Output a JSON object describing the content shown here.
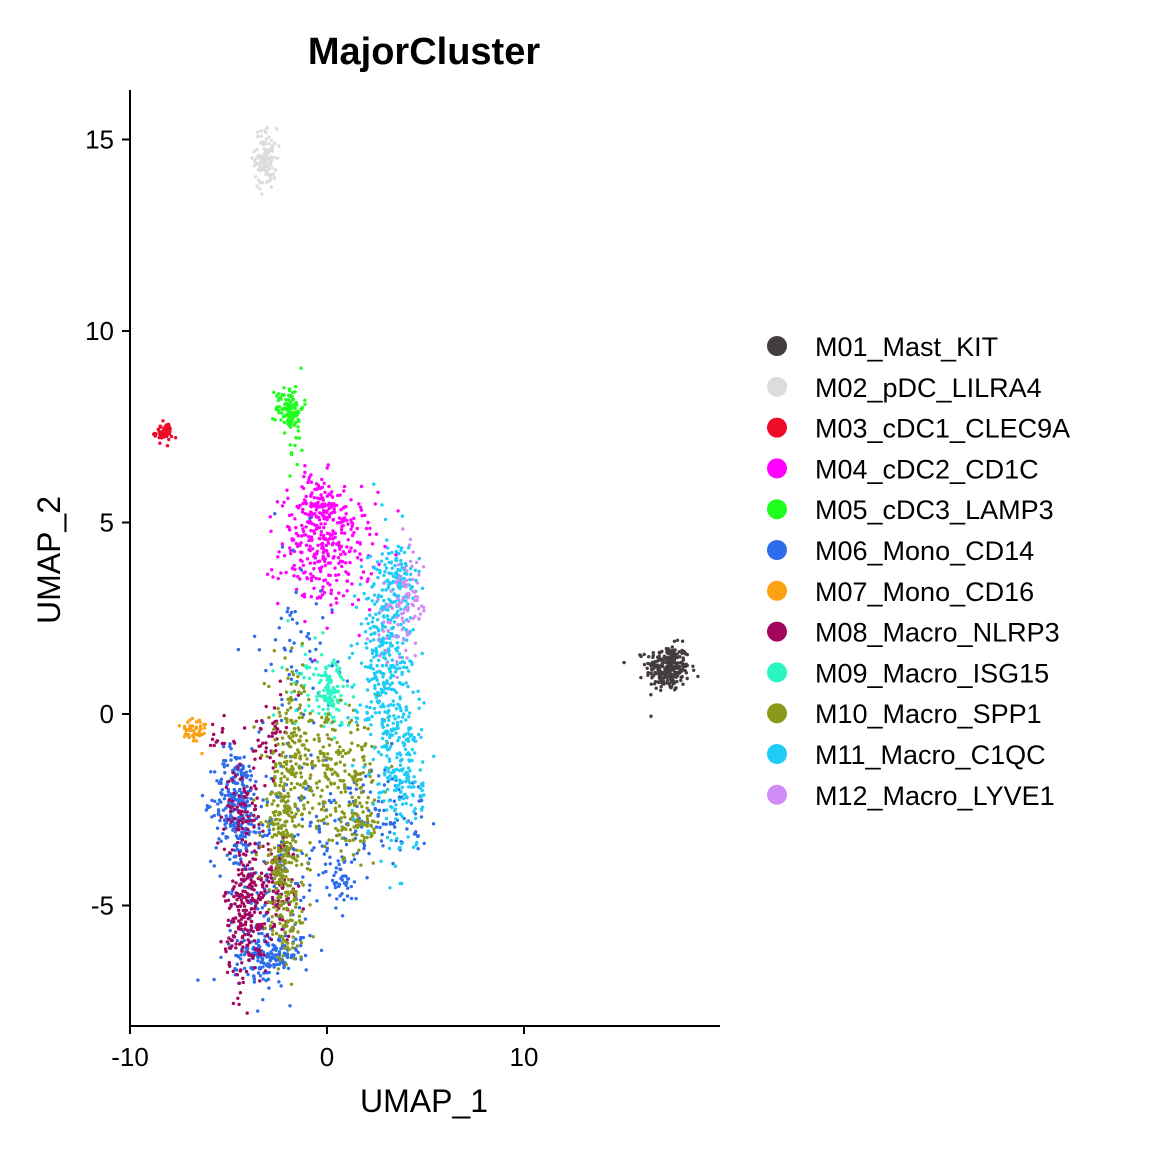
{
  "chart_data": {
    "type": "scatter",
    "title": "MajorCluster",
    "xlabel": "UMAP_1",
    "ylabel": "UMAP_2",
    "xlim": [
      -10,
      20
    ],
    "ylim": [
      -7.8,
      16.2
    ],
    "xticks": [
      -10,
      0,
      10
    ],
    "xtick_labels": [
      "-10",
      "0",
      "10"
    ],
    "yticks": [
      -5,
      0,
      5,
      10,
      15
    ],
    "ytick_labels": [
      "-5",
      "0",
      "5",
      "10",
      "15"
    ],
    "grid": false,
    "legend_position": "right",
    "series": [
      {
        "name": "M01_Mast_KIT",
        "color": "#433D3F",
        "clusters": [
          {
            "cx": 17.3,
            "cy": 1.2,
            "sx": 0.55,
            "sy": 0.3,
            "n": 260
          }
        ]
      },
      {
        "name": "M02_pDC_LILRA4",
        "color": "#DCDCDC",
        "clusters": [
          {
            "cx": -3.1,
            "cy": 14.5,
            "sx": 0.28,
            "sy": 0.4,
            "n": 110
          }
        ]
      },
      {
        "name": "M03_cDC1_CLEC9A",
        "color": "#EE0C28",
        "clusters": [
          {
            "cx": -8.3,
            "cy": 7.35,
            "sx": 0.22,
            "sy": 0.12,
            "n": 60
          }
        ]
      },
      {
        "name": "M04_cDC2_CD1C",
        "color": "#FF00FF",
        "clusters": [
          {
            "cx": 0.0,
            "cy": 4.3,
            "sx": 1.2,
            "sy": 0.75,
            "n": 300
          },
          {
            "cx": -0.5,
            "cy": 5.4,
            "sx": 0.6,
            "sy": 0.45,
            "n": 110
          }
        ]
      },
      {
        "name": "M05_cDC3_LAMP3",
        "color": "#1EFF1E",
        "clusters": [
          {
            "cx": -1.9,
            "cy": 8.0,
            "sx": 0.35,
            "sy": 0.3,
            "n": 110
          },
          {
            "cx": -1.6,
            "cy": 7.0,
            "sx": 0.15,
            "sy": 0.5,
            "n": 12
          }
        ]
      },
      {
        "name": "M06_Mono_CD14",
        "color": "#2D6CEB",
        "clusters": [
          {
            "cx": -4.6,
            "cy": -2.3,
            "sx": 0.55,
            "sy": 0.7,
            "n": 250
          },
          {
            "cx": -3.0,
            "cy": -6.3,
            "sx": 0.85,
            "sy": 0.3,
            "n": 180
          },
          {
            "cx": -3.0,
            "cy": -4.0,
            "sx": 1.2,
            "sy": 1.6,
            "n": 180
          },
          {
            "cx": 0.8,
            "cy": -4.4,
            "sx": 0.3,
            "sy": 0.25,
            "n": 30
          },
          {
            "cx": 0.2,
            "cy": -3.3,
            "sx": 1.0,
            "sy": 0.8,
            "n": 80
          },
          {
            "cx": -1.5,
            "cy": 2.0,
            "sx": 1.0,
            "sy": 1.3,
            "n": 60
          },
          {
            "cx": 3.2,
            "cy": -2.5,
            "sx": 1.0,
            "sy": 0.6,
            "n": 80
          }
        ]
      },
      {
        "name": "M07_Mono_CD16",
        "color": "#FBA112",
        "clusters": [
          {
            "cx": -6.8,
            "cy": -0.45,
            "sx": 0.35,
            "sy": 0.22,
            "n": 50
          }
        ]
      },
      {
        "name": "M08_Macro_NLRP3",
        "color": "#A3065E",
        "clusters": [
          {
            "cx": -4.1,
            "cy": -5.2,
            "sx": 0.55,
            "sy": 0.9,
            "n": 240
          },
          {
            "cx": -4.2,
            "cy": -2.5,
            "sx": 0.5,
            "sy": 0.5,
            "n": 80
          },
          {
            "cx": -2.5,
            "cy": -4.5,
            "sx": 0.5,
            "sy": 0.7,
            "n": 90
          },
          {
            "cx": -2.9,
            "cy": -0.6,
            "sx": 0.4,
            "sy": 0.5,
            "n": 50
          },
          {
            "cx": -5.5,
            "cy": -0.6,
            "sx": 0.4,
            "sy": 0.2,
            "n": 15
          }
        ]
      },
      {
        "name": "M09_Macro_ISG15",
        "color": "#2CF5C4",
        "clusters": [
          {
            "cx": 0.2,
            "cy": 0.5,
            "sx": 0.5,
            "sy": 0.45,
            "n": 110
          },
          {
            "cx": -1.2,
            "cy": 1.0,
            "sx": 0.5,
            "sy": 0.6,
            "n": 25
          }
        ]
      },
      {
        "name": "M10_Macro_SPP1",
        "color": "#88991C",
        "clusters": [
          {
            "cx": -2.2,
            "cy": -3.2,
            "sx": 0.55,
            "sy": 1.2,
            "n": 280
          },
          {
            "cx": 0.2,
            "cy": -1.5,
            "sx": 1.3,
            "sy": 0.7,
            "n": 220
          },
          {
            "cx": 1.5,
            "cy": -2.9,
            "sx": 0.6,
            "sy": 0.4,
            "n": 80
          },
          {
            "cx": -1.7,
            "cy": -0.2,
            "sx": 0.5,
            "sy": 0.8,
            "n": 80
          },
          {
            "cx": -2.0,
            "cy": -5.5,
            "sx": 0.5,
            "sy": 0.6,
            "n": 70
          }
        ]
      },
      {
        "name": "M11_Macro_C1QC",
        "color": "#1FCBF7",
        "clusters": [
          {
            "cx": 3.0,
            "cy": 1.2,
            "sx": 0.7,
            "sy": 1.6,
            "n": 380
          },
          {
            "cx": 3.9,
            "cy": -1.5,
            "sx": 0.5,
            "sy": 1.1,
            "n": 150
          },
          {
            "cx": 3.6,
            "cy": 3.5,
            "sx": 0.6,
            "sy": 0.4,
            "n": 90
          }
        ]
      },
      {
        "name": "M12_Macro_LYVE1",
        "color": "#D28CF5",
        "clusters": [
          {
            "cx": 4.1,
            "cy": 2.9,
            "sx": 0.4,
            "sy": 0.7,
            "n": 70
          },
          {
            "cx": 3.2,
            "cy": 2.2,
            "sx": 0.5,
            "sy": 0.5,
            "n": 25
          }
        ]
      }
    ]
  }
}
